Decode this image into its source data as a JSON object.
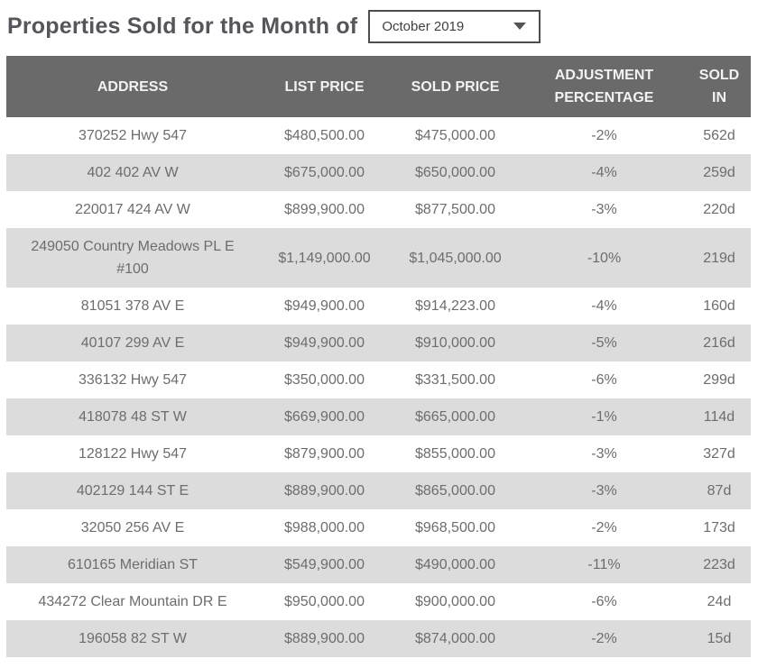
{
  "page": {
    "title": "Properties Sold for the Month of"
  },
  "month_selector": {
    "value": "October 2019"
  },
  "table": {
    "columns": [
      "ADDRESS",
      "LIST PRICE",
      "SOLD PRICE",
      "ADJUSTMENT PERCENTAGE",
      "SOLD IN"
    ],
    "rows": [
      {
        "address": "370252 Hwy 547",
        "list_price": "$480,500.00",
        "sold_price": "$475,000.00",
        "adjustment": "-2%",
        "sold_in": "562d"
      },
      {
        "address": "402 402 AV W",
        "list_price": "$675,000.00",
        "sold_price": "$650,000.00",
        "adjustment": "-4%",
        "sold_in": "259d"
      },
      {
        "address": "220017 424 AV W",
        "list_price": "$899,900.00",
        "sold_price": "$877,500.00",
        "adjustment": "-3%",
        "sold_in": "220d"
      },
      {
        "address": "249050 Country Meadows PL E #100",
        "list_price": "$1,149,000.00",
        "sold_price": "$1,045,000.00",
        "adjustment": "-10%",
        "sold_in": "219d"
      },
      {
        "address": "81051 378 AV E",
        "list_price": "$949,900.00",
        "sold_price": "$914,223.00",
        "adjustment": "-4%",
        "sold_in": "160d"
      },
      {
        "address": "40107 299 AV E",
        "list_price": "$949,900.00",
        "sold_price": "$910,000.00",
        "adjustment": "-5%",
        "sold_in": "216d"
      },
      {
        "address": "336132 Hwy 547",
        "list_price": "$350,000.00",
        "sold_price": "$331,500.00",
        "adjustment": "-6%",
        "sold_in": "299d"
      },
      {
        "address": "418078 48 ST W",
        "list_price": "$669,900.00",
        "sold_price": "$665,000.00",
        "adjustment": "-1%",
        "sold_in": "114d"
      },
      {
        "address": "128122 Hwy 547",
        "list_price": "$879,900.00",
        "sold_price": "$855,000.00",
        "adjustment": "-3%",
        "sold_in": "327d"
      },
      {
        "address": "402129 144 ST E",
        "list_price": "$889,900.00",
        "sold_price": "$865,000.00",
        "adjustment": "-3%",
        "sold_in": "87d"
      },
      {
        "address": "32050 256 AV E",
        "list_price": "$988,000.00",
        "sold_price": "$968,500.00",
        "adjustment": "-2%",
        "sold_in": "173d"
      },
      {
        "address": "610165 Meridian ST",
        "list_price": "$549,900.00",
        "sold_price": "$490,000.00",
        "adjustment": "-11%",
        "sold_in": "223d"
      },
      {
        "address": "434272 Clear Mountain DR E",
        "list_price": "$950,000.00",
        "sold_price": "$900,000.00",
        "adjustment": "-6%",
        "sold_in": "24d"
      },
      {
        "address": "196058 82 ST W",
        "list_price": "$889,900.00",
        "sold_price": "$874,000.00",
        "adjustment": "-2%",
        "sold_in": "15d"
      }
    ]
  },
  "colors": {
    "header_bg": "#6a6a6a",
    "header_text": "#f2f2f2",
    "row_stripe_bg": "#dcdcdc",
    "row_text": "#6d6d6d",
    "title_text": "#55565b",
    "dropdown_border": "#4d4d4d",
    "dropdown_text": "#3f3f3f",
    "arrow_color": "#555555"
  }
}
